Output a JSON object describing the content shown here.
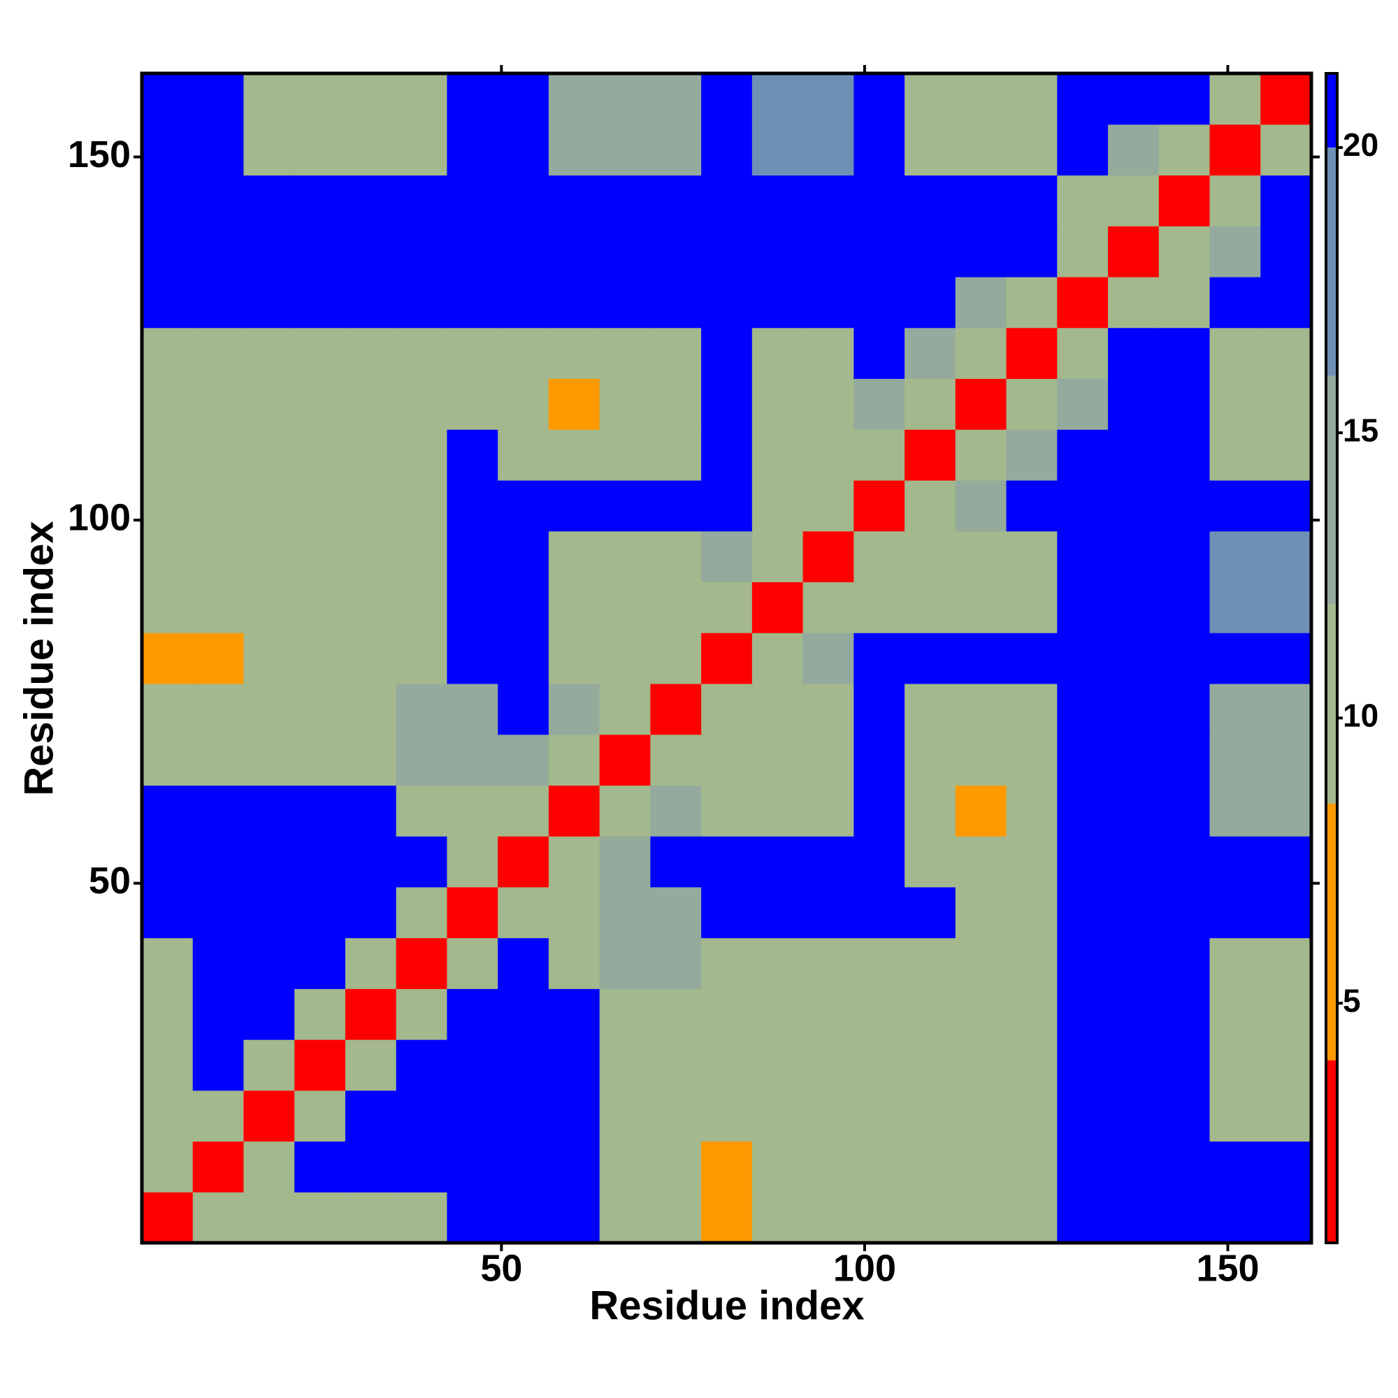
{
  "chart_data": {
    "type": "heatmap",
    "x_label": "Residue index",
    "y_label": "Residue index",
    "x_edges": [
      0.5,
      7.5,
      14.5,
      21.5,
      28.5,
      35.5,
      42.5,
      49.5,
      56.5,
      63.5,
      70.5,
      77.5,
      84.5,
      91.5,
      98.5,
      105.5,
      112.5,
      119.5,
      126.5,
      133.5,
      140.5,
      147.5,
      154.5,
      161.5
    ],
    "y_edges": [
      0.5,
      7.5,
      14.5,
      21.5,
      28.5,
      35.5,
      42.5,
      49.5,
      56.5,
      63.5,
      70.5,
      77.5,
      84.5,
      91.5,
      98.5,
      105.5,
      112.5,
      119.5,
      126.5,
      133.5,
      140.5,
      147.5,
      154.5,
      161.5
    ],
    "values": [
      [
        3,
        9,
        11,
        11,
        11,
        11,
        21,
        21,
        21,
        11,
        11,
        7,
        11,
        11,
        11,
        11,
        11,
        11,
        21,
        21,
        21,
        21,
        21
      ],
      [
        9,
        3,
        9,
        21,
        21,
        21,
        21,
        21,
        21,
        11,
        11,
        7,
        11,
        11,
        11,
        11,
        11,
        11,
        21,
        21,
        21,
        21,
        21
      ],
      [
        11,
        9,
        3,
        9,
        21,
        21,
        21,
        21,
        21,
        12,
        12,
        12,
        12,
        11,
        11,
        11,
        11,
        11,
        21,
        21,
        21,
        12,
        12
      ],
      [
        11,
        21,
        9,
        3,
        9,
        21,
        21,
        21,
        21,
        12,
        12,
        12,
        12,
        11,
        11,
        11,
        11,
        11,
        21,
        21,
        21,
        12,
        12
      ],
      [
        11,
        21,
        21,
        9,
        3,
        9,
        21,
        21,
        21,
        12,
        12,
        12,
        12,
        11,
        11,
        11,
        12,
        12,
        21,
        21,
        21,
        12,
        12
      ],
      [
        11,
        21,
        21,
        21,
        9,
        3,
        9,
        21,
        12,
        13,
        13,
        11,
        11,
        11,
        11,
        11,
        12,
        12,
        21,
        21,
        21,
        12,
        12
      ],
      [
        21,
        21,
        21,
        21,
        21,
        9,
        3,
        9,
        12,
        13,
        13,
        21,
        21,
        21,
        21,
        21,
        12,
        12,
        21,
        21,
        21,
        21,
        21
      ],
      [
        21,
        21,
        21,
        21,
        21,
        21,
        9,
        3,
        9,
        15,
        21,
        21,
        21,
        21,
        21,
        11,
        11,
        11,
        21,
        21,
        21,
        21,
        21
      ],
      [
        21,
        21,
        21,
        21,
        21,
        12,
        12,
        9,
        3,
        9,
        15,
        11,
        11,
        11,
        21,
        12,
        8,
        12,
        21,
        21,
        21,
        15,
        15
      ],
      [
        11,
        11,
        12,
        12,
        12,
        13,
        13,
        15,
        9,
        3,
        9,
        11,
        11,
        11,
        21,
        12,
        12,
        12,
        21,
        21,
        21,
        14,
        14
      ],
      [
        11,
        11,
        12,
        12,
        12,
        13,
        13,
        21,
        15,
        9,
        3,
        9,
        11,
        11,
        21,
        12,
        12,
        12,
        21,
        21,
        21,
        14,
        14
      ],
      [
        7,
        7,
        12,
        12,
        12,
        11,
        21,
        21,
        11,
        11,
        9,
        3,
        9,
        15,
        21,
        21,
        21,
        21,
        21,
        21,
        21,
        21,
        21
      ],
      [
        11,
        11,
        12,
        12,
        12,
        11,
        21,
        21,
        11,
        11,
        11,
        9,
        3,
        9,
        11,
        11,
        11,
        11,
        21,
        21,
        21,
        17,
        17
      ],
      [
        11,
        11,
        11,
        11,
        11,
        11,
        21,
        21,
        11,
        11,
        11,
        15,
        9,
        3,
        9,
        11,
        11,
        11,
        21,
        21,
        21,
        17,
        17
      ],
      [
        11,
        11,
        11,
        11,
        11,
        11,
        21,
        21,
        21,
        21,
        21,
        21,
        11,
        9,
        3,
        9,
        15,
        21,
        21,
        21,
        21,
        21,
        21
      ],
      [
        11,
        11,
        11,
        11,
        11,
        11,
        21,
        11,
        12,
        12,
        12,
        21,
        11,
        11,
        9,
        3,
        9,
        15,
        21,
        21,
        21,
        11,
        11
      ],
      [
        11,
        11,
        11,
        11,
        12,
        12,
        12,
        11,
        8,
        12,
        12,
        21,
        11,
        11,
        15,
        9,
        3,
        9,
        15,
        21,
        21,
        11,
        11
      ],
      [
        11,
        11,
        11,
        11,
        12,
        12,
        12,
        11,
        12,
        12,
        12,
        21,
        11,
        11,
        21,
        15,
        9,
        3,
        9,
        21,
        21,
        11,
        11
      ],
      [
        21,
        21,
        21,
        21,
        21,
        21,
        21,
        21,
        21,
        21,
        21,
        21,
        21,
        21,
        21,
        21,
        15,
        9,
        3,
        9,
        12,
        21,
        21
      ],
      [
        21,
        21,
        21,
        21,
        21,
        21,
        21,
        21,
        21,
        21,
        21,
        21,
        21,
        21,
        21,
        21,
        21,
        21,
        9,
        3,
        9,
        13,
        21
      ],
      [
        21,
        21,
        21,
        21,
        21,
        21,
        21,
        21,
        21,
        21,
        21,
        21,
        21,
        21,
        21,
        21,
        21,
        21,
        12,
        9,
        3,
        9,
        21
      ],
      [
        21,
        21,
        12,
        12,
        12,
        12,
        21,
        21,
        15,
        14,
        14,
        21,
        17,
        17,
        21,
        11,
        11,
        11,
        21,
        13,
        9,
        3,
        9
      ],
      [
        21,
        21,
        12,
        12,
        12,
        12,
        21,
        21,
        15,
        14,
        14,
        21,
        17,
        17,
        21,
        11,
        11,
        11,
        21,
        21,
        21,
        9,
        3
      ]
    ],
    "xlim": [
      0.5,
      161.5
    ],
    "ylim": [
      0.5,
      161.5
    ],
    "xticks": [
      50,
      100,
      150
    ],
    "yticks": [
      50,
      100,
      150
    ],
    "zlim": [
      0.8,
      21.3
    ],
    "zticks": [
      5,
      10,
      15,
      20
    ],
    "color_bounds": [
      4,
      8.5,
      12,
      16,
      20
    ],
    "colors": [
      "#ff0000",
      "#ff9900",
      "#a3b88c",
      "#94aa9c",
      "#6f8fb5",
      "#0000ff"
    ]
  }
}
